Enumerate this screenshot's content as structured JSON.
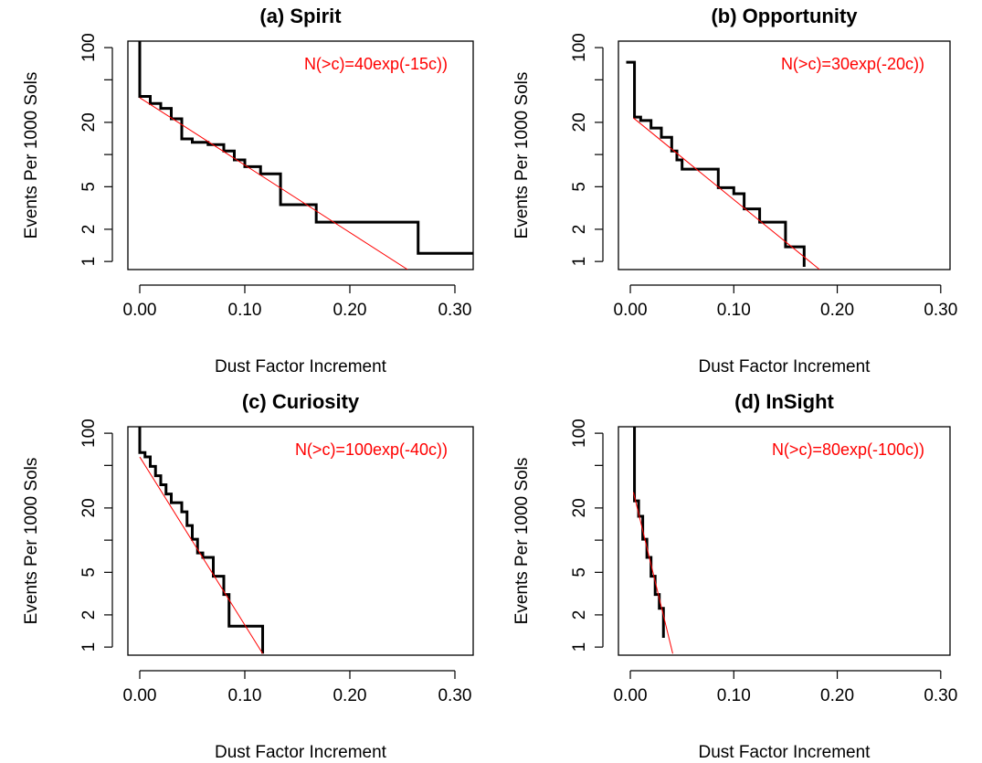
{
  "chart_data": [
    {
      "type": "line",
      "title": "(a) Spirit",
      "xlabel": "Dust Factor Increment",
      "ylabel": "Events Per 1000 Sols",
      "annotation": "N(>c)=40exp(-15c))",
      "log_y": true,
      "xlim": [
        -0.0113,
        0.3174
      ],
      "ylim": [
        0.84,
        115
      ],
      "xticks": [
        {
          "value": 0,
          "label": "0.00"
        },
        {
          "value": 0.1,
          "label": "0.10"
        },
        {
          "value": 0.2,
          "label": "0.20"
        },
        {
          "value": 0.3,
          "label": "0.30"
        }
      ],
      "yticks": [
        1,
        2,
        5,
        {
          "value": 10,
          "label": null
        },
        20,
        {
          "value": 50,
          "label": null
        },
        100
      ],
      "series": [
        {
          "color": "#000000",
          "x": [
            0.0,
            0.0,
            0.01,
            0.01,
            0.02,
            0.02,
            0.03,
            0.03,
            0.04,
            0.04,
            0.05,
            0.05,
            0.065,
            0.065,
            0.08,
            0.08,
            0.09,
            0.09,
            0.1,
            0.1,
            0.115,
            0.115,
            0.134,
            0.134,
            0.168,
            0.168,
            0.265,
            0.265,
            0.32
          ],
          "values": [
            200,
            35,
            35,
            30,
            30,
            27,
            27,
            21.6,
            21.6,
            14,
            14,
            13,
            13,
            12.4,
            12.4,
            10.8,
            10.8,
            8.9,
            8.9,
            7.7,
            7.7,
            6.6,
            6.6,
            3.4,
            3.4,
            2.33,
            2.33,
            1.19,
            1.19
          ]
        },
        {
          "color": "#ff0000",
          "x": [
            0.0,
            0.255
          ],
          "values": [
            34,
            0.84
          ]
        }
      ]
    },
    {
      "type": "line",
      "title": "(b) Opportunity",
      "xlabel": "Dust Factor Increment",
      "ylabel": "Events Per 1000 Sols",
      "annotation": "N(>c)=30exp(-20c))",
      "log_y": true,
      "xlim": [
        -0.0115,
        0.309
      ],
      "ylim": [
        0.84,
        115
      ],
      "xticks": [
        {
          "value": 0,
          "label": "0.00"
        },
        {
          "value": 0.1,
          "label": "0.10"
        },
        {
          "value": 0.2,
          "label": "0.20"
        },
        {
          "value": 0.3,
          "label": "0.30"
        }
      ],
      "yticks": [
        1,
        2,
        5,
        {
          "value": 10,
          "label": null
        },
        20,
        {
          "value": 50,
          "label": null
        },
        100
      ],
      "series": [
        {
          "color": "#000000",
          "x": [
            -0.004,
            0.004,
            0.004,
            0.01,
            0.01,
            0.02,
            0.02,
            0.03,
            0.03,
            0.04,
            0.04,
            0.045,
            0.045,
            0.05,
            0.05,
            0.085,
            0.085,
            0.1,
            0.1,
            0.11,
            0.11,
            0.125,
            0.125,
            0.15,
            0.15,
            0.168,
            0.168
          ],
          "values": [
            73,
            73,
            22.4,
            22.4,
            20.8,
            20.8,
            17.7,
            17.7,
            14.5,
            14.5,
            10.8,
            10.8,
            8.9,
            8.9,
            7.3,
            7.3,
            4.9,
            4.9,
            4.3,
            4.3,
            3.1,
            3.1,
            2.33,
            2.33,
            1.37,
            1.37,
            0.89
          ]
        },
        {
          "color": "#ff0000",
          "x": [
            0.003,
            0.183
          ],
          "values": [
            22,
            0.84
          ]
        }
      ]
    },
    {
      "type": "line",
      "title": "(c) Curiosity",
      "xlabel": "Dust Factor Increment",
      "ylabel": "Events Per 1000 Sols",
      "annotation": "N(>c)=100exp(-40c))",
      "log_y": true,
      "xlim": [
        -0.0113,
        0.3174
      ],
      "ylim": [
        0.84,
        115
      ],
      "xticks": [
        {
          "value": 0,
          "label": "0.00"
        },
        {
          "value": 0.1,
          "label": "0.10"
        },
        {
          "value": 0.2,
          "label": "0.20"
        },
        {
          "value": 0.3,
          "label": "0.30"
        }
      ],
      "yticks": [
        1,
        2,
        5,
        {
          "value": 10,
          "label": null
        },
        20,
        {
          "value": 50,
          "label": null
        },
        100
      ],
      "series": [
        {
          "color": "#000000",
          "x": [
            0.0,
            0.0,
            0.005,
            0.005,
            0.01,
            0.01,
            0.015,
            0.015,
            0.02,
            0.02,
            0.025,
            0.025,
            0.03,
            0.03,
            0.04,
            0.04,
            0.045,
            0.045,
            0.05,
            0.05,
            0.055,
            0.055,
            0.06,
            0.06,
            0.07,
            0.07,
            0.08,
            0.08,
            0.085,
            0.085,
            0.117,
            0.117
          ],
          "values": [
            200,
            66,
            66,
            60,
            60,
            49,
            49,
            40,
            40,
            33,
            33,
            27,
            27,
            22.4,
            22.4,
            18.4,
            18.4,
            13.7,
            13.7,
            10.2,
            10.2,
            7.6,
            7.6,
            6.9,
            6.9,
            4.6,
            4.6,
            3.1,
            3.1,
            1.57,
            1.57,
            0.87
          ]
        },
        {
          "color": "#ff0000",
          "x": [
            0.0,
            0.117
          ],
          "values": [
            60,
            0.87
          ]
        }
      ]
    },
    {
      "type": "line",
      "title": "(d) InSight",
      "xlabel": "Dust Factor Increment",
      "ylabel": "Events Per 1000 Sols",
      "annotation": "N(>c)=80exp(-100c))",
      "log_y": true,
      "xlim": [
        -0.0115,
        0.309
      ],
      "ylim": [
        0.84,
        115
      ],
      "xticks": [
        {
          "value": 0,
          "label": "0.00"
        },
        {
          "value": 0.1,
          "label": "0.10"
        },
        {
          "value": 0.2,
          "label": "0.20"
        },
        {
          "value": 0.3,
          "label": "0.30"
        }
      ],
      "yticks": [
        1,
        2,
        5,
        {
          "value": 10,
          "label": null
        },
        20,
        {
          "value": 50,
          "label": null
        },
        100
      ],
      "series": [
        {
          "color": "#000000",
          "x": [
            0.004,
            0.004,
            0.008,
            0.008,
            0.012,
            0.012,
            0.016,
            0.016,
            0.02,
            0.02,
            0.024,
            0.024,
            0.028,
            0.028,
            0.032,
            0.032
          ],
          "values": [
            200,
            23.3,
            23.3,
            16.7,
            16.7,
            10.2,
            10.2,
            6.9,
            6.9,
            4.6,
            4.6,
            3.1,
            3.1,
            2.3,
            2.3,
            1.22
          ]
        },
        {
          "color": "#ff0000",
          "x": [
            0.003,
            0.041
          ],
          "values": [
            28,
            0.87
          ]
        }
      ]
    }
  ]
}
